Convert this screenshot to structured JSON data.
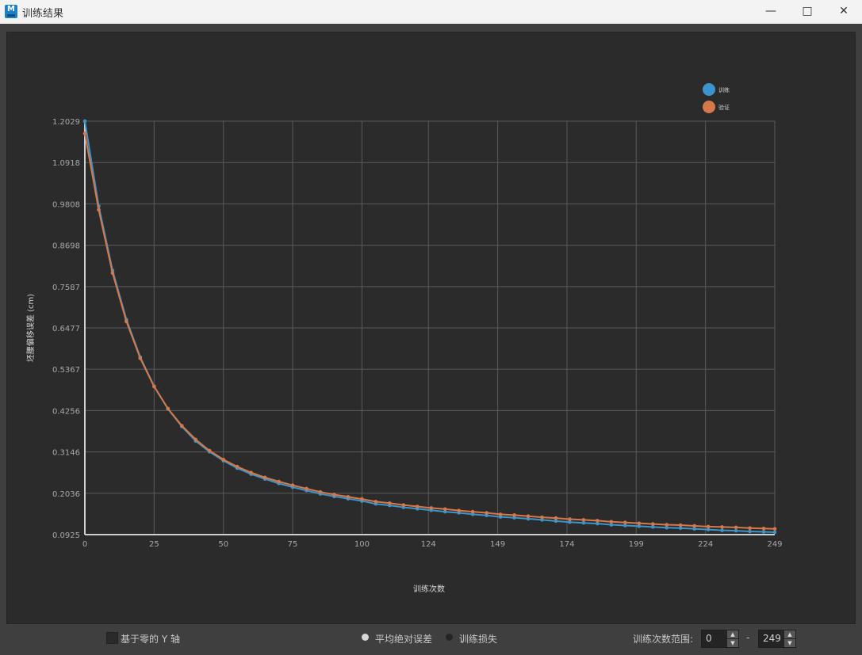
{
  "window": {
    "title": "训练结果",
    "icon": "app-m-icon",
    "controls": [
      "minimize-icon",
      "maximize-icon",
      "close-icon"
    ]
  },
  "chart_data": {
    "type": "line",
    "xlabel": "训练次数",
    "ylabel": "坯腰偏移误差 (cm)",
    "xlim": [
      0,
      249
    ],
    "ylim": [
      0.0925,
      1.2029
    ],
    "xticks": [
      "0",
      "25",
      "50",
      "75",
      "100",
      "124",
      "149",
      "174",
      "199",
      "224",
      "249"
    ],
    "xtick_values": [
      0,
      25,
      50,
      75,
      100,
      124,
      149,
      174,
      199,
      224,
      249
    ],
    "yticks": [
      "0.0925",
      "0.2036",
      "0.3146",
      "0.4256",
      "0.5367",
      "0.6477",
      "0.7587",
      "0.8698",
      "0.9808",
      "1.0918",
      "1.2029"
    ],
    "grid": true,
    "legend_position": "top-right",
    "x": [
      0,
      5,
      10,
      15,
      20,
      25,
      30,
      35,
      40,
      45,
      50,
      55,
      60,
      65,
      70,
      75,
      80,
      85,
      90,
      95,
      100,
      105,
      110,
      115,
      120,
      125,
      130,
      135,
      140,
      145,
      150,
      155,
      160,
      165,
      170,
      175,
      180,
      185,
      190,
      195,
      200,
      205,
      210,
      215,
      220,
      225,
      230,
      235,
      240,
      245,
      249
    ],
    "series": [
      {
        "name": "训练",
        "color": "#3d94cb",
        "values": [
          1.203,
          0.975,
          0.802,
          0.67,
          0.569,
          0.491,
          0.43,
          0.383,
          0.344,
          0.315,
          0.291,
          0.271,
          0.255,
          0.242,
          0.23,
          0.22,
          0.211,
          0.202,
          0.195,
          0.189,
          0.183,
          0.175,
          0.171,
          0.166,
          0.162,
          0.158,
          0.154,
          0.151,
          0.147,
          0.144,
          0.14,
          0.138,
          0.135,
          0.132,
          0.129,
          0.126,
          0.124,
          0.122,
          0.119,
          0.117,
          0.115,
          0.113,
          0.111,
          0.11,
          0.108,
          0.106,
          0.104,
          0.103,
          0.101,
          0.1,
          0.099
        ]
      },
      {
        "name": "验证",
        "color": "#d5784a",
        "values": [
          1.17,
          0.965,
          0.795,
          0.665,
          0.566,
          0.49,
          0.431,
          0.385,
          0.348,
          0.318,
          0.294,
          0.275,
          0.259,
          0.246,
          0.235,
          0.225,
          0.216,
          0.207,
          0.2,
          0.194,
          0.188,
          0.181,
          0.177,
          0.172,
          0.168,
          0.164,
          0.161,
          0.157,
          0.154,
          0.151,
          0.147,
          0.145,
          0.142,
          0.139,
          0.137,
          0.134,
          0.132,
          0.13,
          0.127,
          0.125,
          0.123,
          0.121,
          0.119,
          0.118,
          0.116,
          0.114,
          0.113,
          0.112,
          0.11,
          0.109,
          0.108
        ]
      }
    ]
  },
  "controls": {
    "zero_y_label": "基于零的 Y 轴",
    "zero_y_checked": false,
    "metric_options": [
      "平均绝对误差",
      "训练损失"
    ],
    "metric_selected": "平均绝对误差",
    "range_label": "训练次数范围:",
    "range_from": "0",
    "range_sep": "-",
    "range_to": "249"
  }
}
